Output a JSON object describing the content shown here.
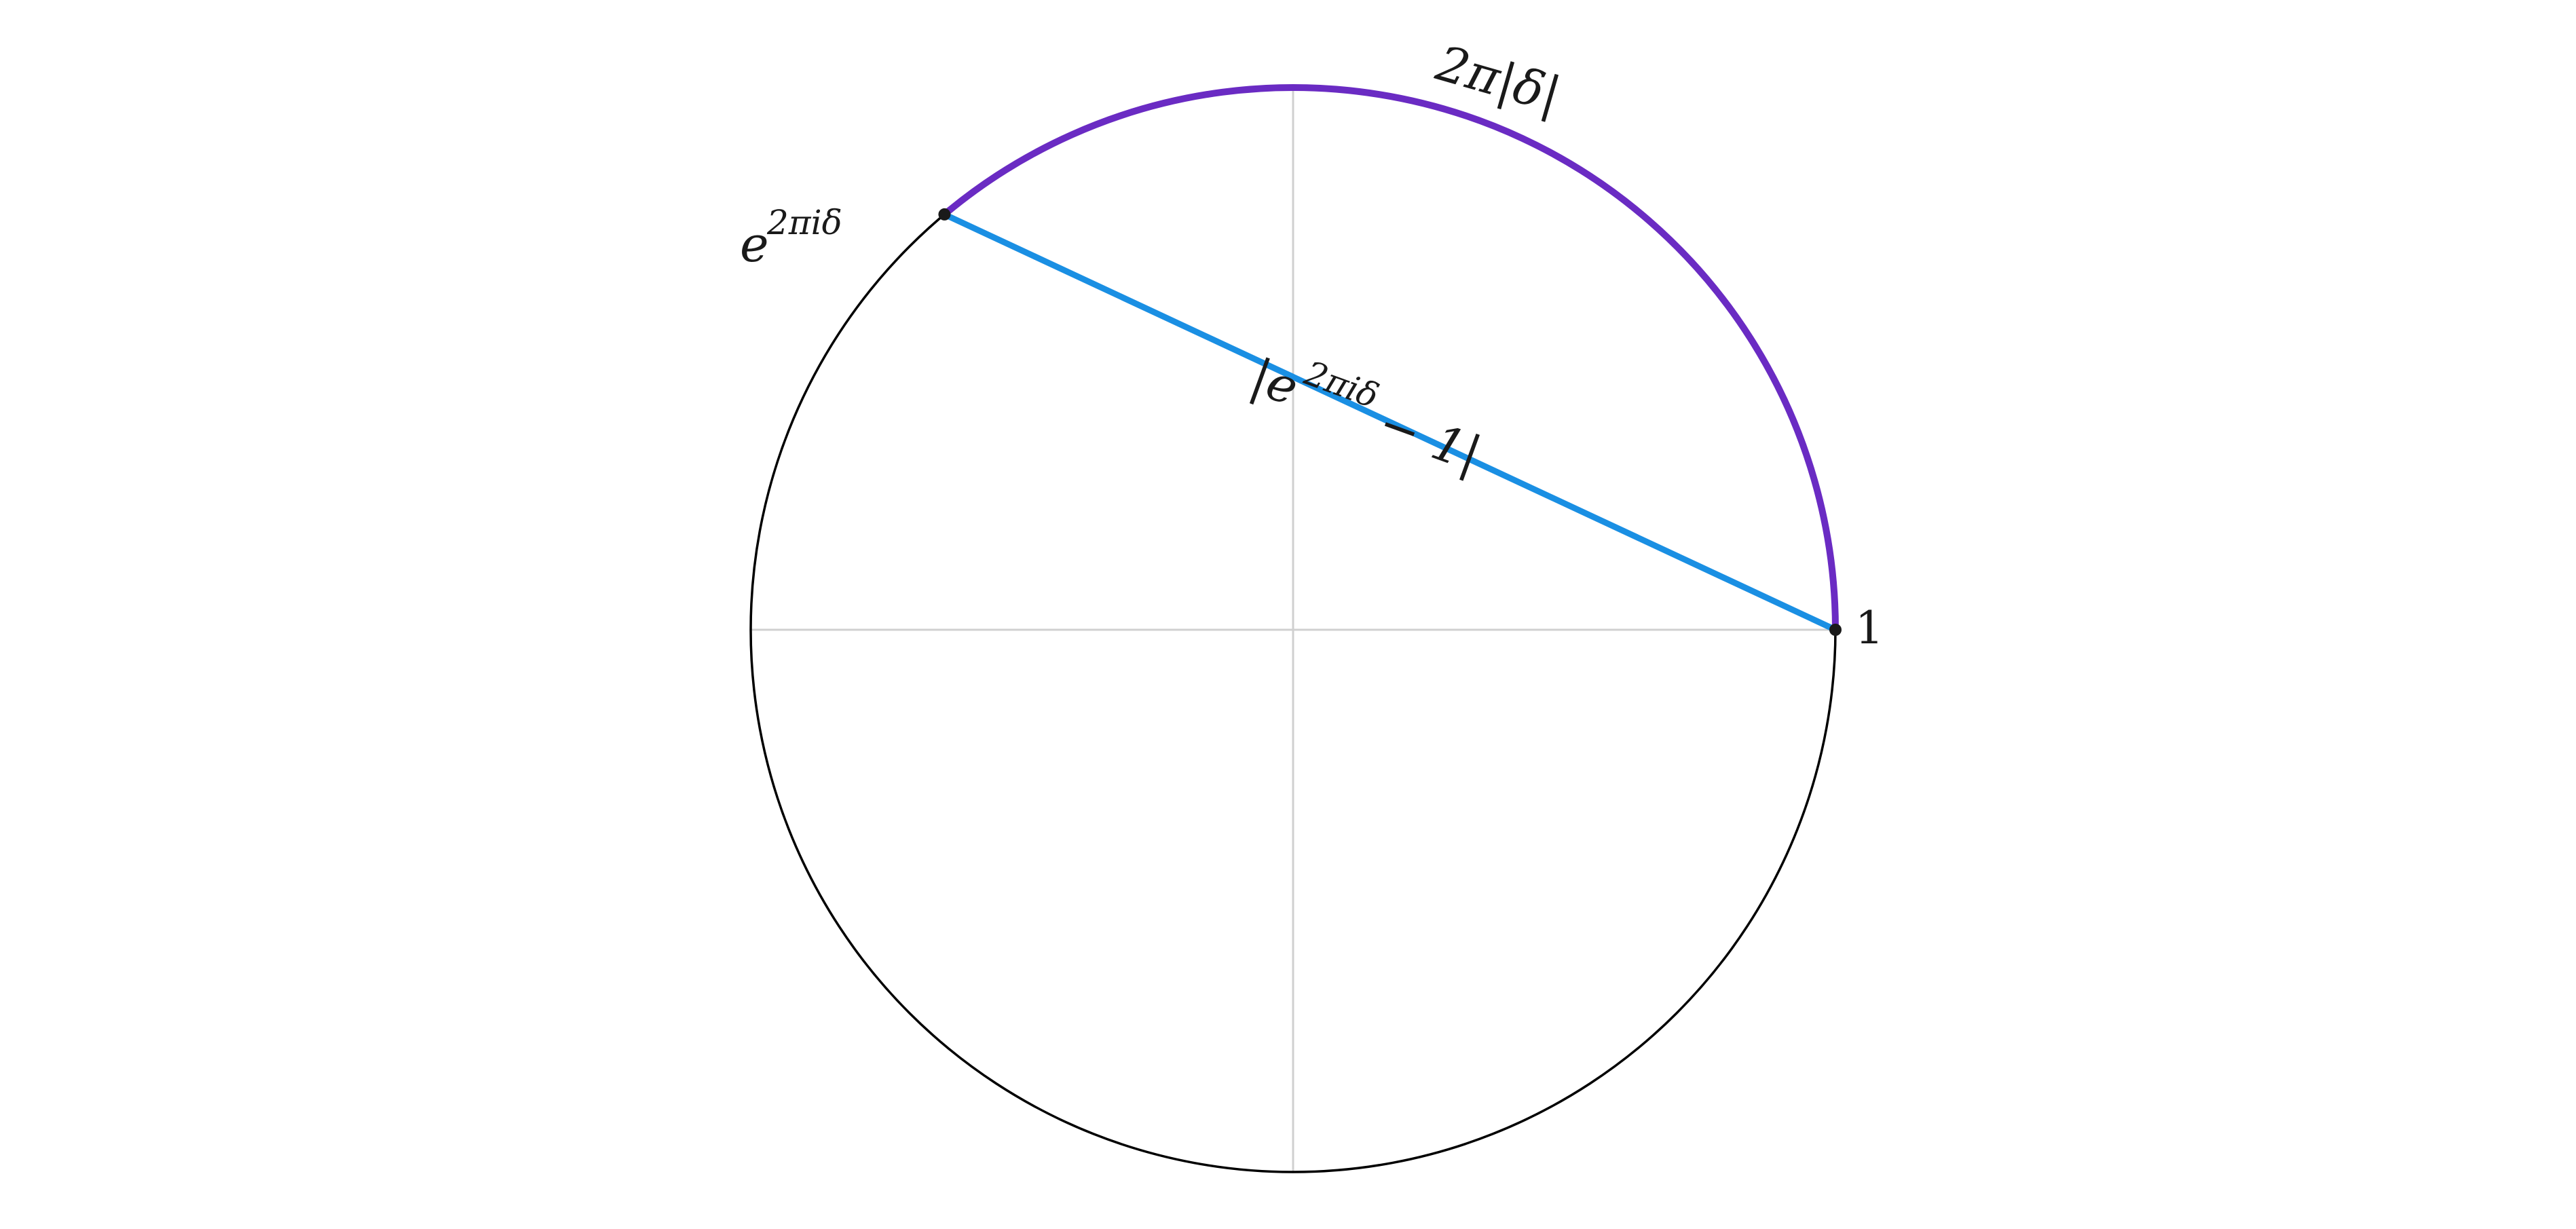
{
  "diagram": {
    "labels": {
      "arc_length": "2π|δ|",
      "point_label": {
        "base": "e",
        "exponent": "2πiδ"
      },
      "chord_length": {
        "open": "|e",
        "exponent": "2πiδ",
        "close": " − 1|"
      },
      "one": "1"
    },
    "angle_degrees": 130,
    "colors": {
      "circle": "#000000",
      "axes": "#d0d0d0",
      "arc": "#6a2bc3",
      "chord": "#1a8fe3",
      "points": "#1a1a1a"
    }
  }
}
